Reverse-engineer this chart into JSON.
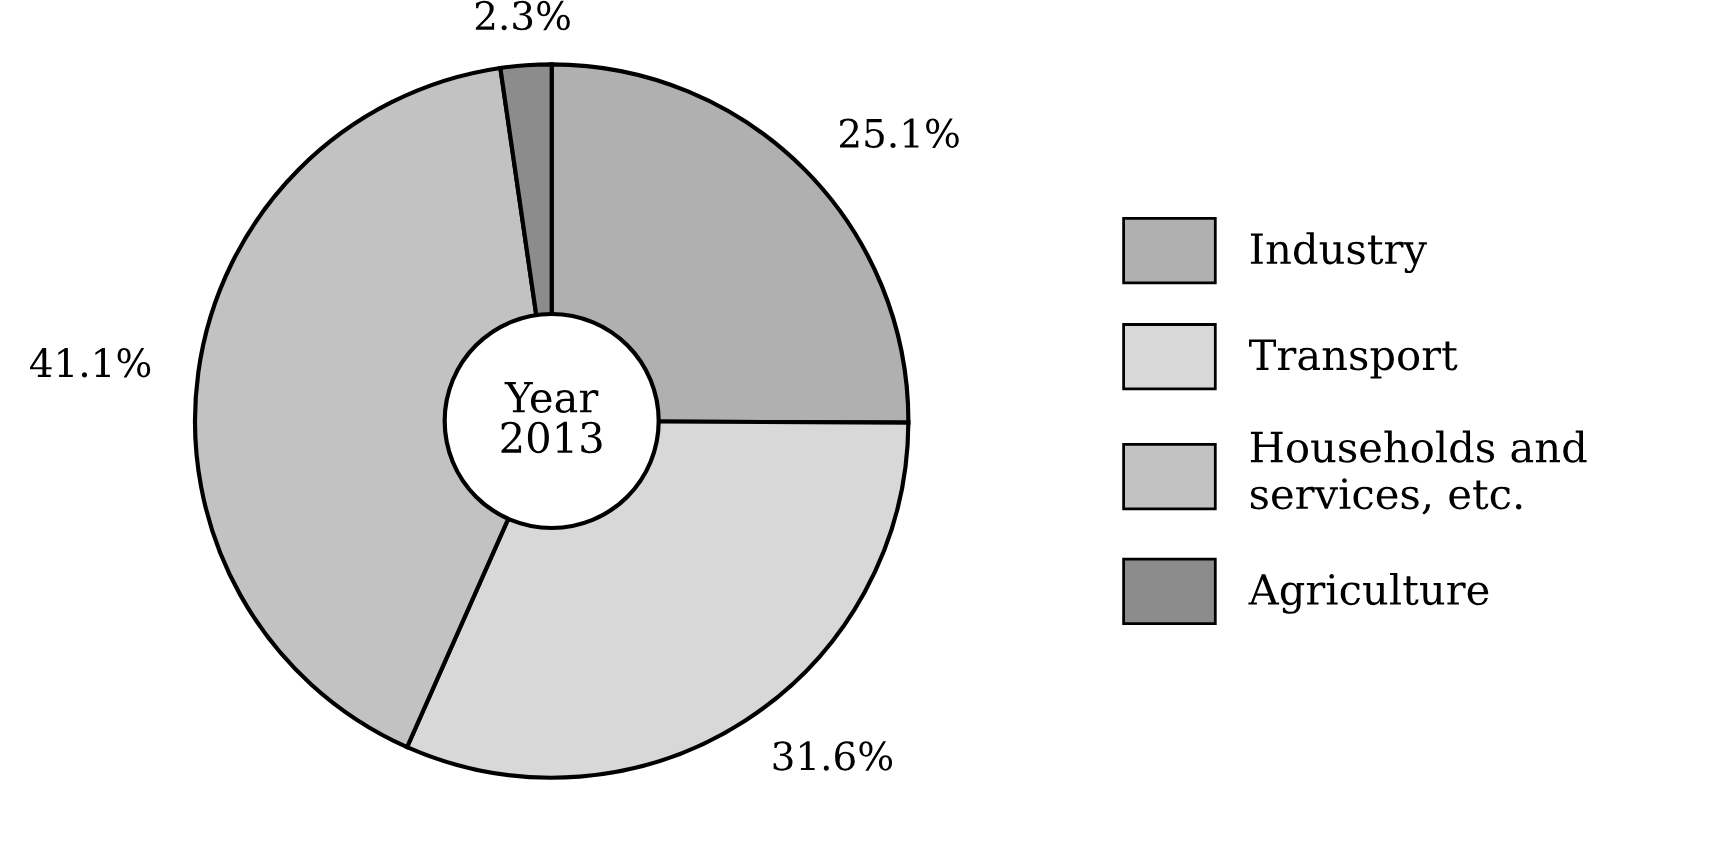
{
  "chart_data": {
    "type": "donut",
    "categories": [
      "Industry",
      "Transport",
      "Households and\nservices, etc.",
      "Agriculture"
    ],
    "values": [
      25.1,
      31.6,
      41.1,
      2.3
    ],
    "value_labels": [
      "25.1%",
      "31.6%",
      "41.1%",
      "2.3%"
    ],
    "colors": [
      "#b0b0b0",
      "#d8d8d8",
      "#c2c2c2",
      "#8c8c8c"
    ],
    "annotations": [
      "Year\n2013"
    ],
    "legend": "right"
  }
}
